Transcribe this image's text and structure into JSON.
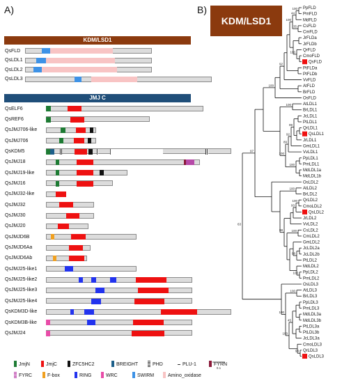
{
  "panel_a_label": "A)",
  "panel_b_label": "B)",
  "kdm_header": "KDM/LSD1",
  "jmj_header": "JMJ C",
  "kdm_box_title": "KDM/LSD1",
  "scale_label": "0.1",
  "colors": {
    "kdm_header": "#8b3a0e",
    "jmj_header": "#1f4e79",
    "JmjN": "#1e7b34",
    "JmjC": "#ee1111",
    "ZFC5HC2": "#111111",
    "BREIGHT": "#1c5f8a",
    "PHD": "#555555",
    "PLU1": "#dcdcdc",
    "FYRN": "#8b1a3a",
    "FYRC": "#b64aa8",
    "Fbox": "#f0a020",
    "RING": "#2233ee",
    "WRC": "#e84ca8",
    "SWIRM": "#3e92e6",
    "Amino_oxidase": "#f8c4c4"
  },
  "kdm_proteins": [
    {
      "name": "QsFLD",
      "len": 0.68,
      "domains": [
        {
          "t": "SWIRM",
          "s": 0.09,
          "e": 0.135
        },
        {
          "t": "Amino_oxidase",
          "s": 0.135,
          "e": 0.47
        }
      ]
    },
    {
      "name": "QsLDL1",
      "len": 0.68,
      "domains": [
        {
          "t": "SWIRM",
          "s": 0.06,
          "e": 0.11
        },
        {
          "t": "Amino_oxidase",
          "s": 0.11,
          "e": 0.48
        }
      ]
    },
    {
      "name": "QsLDL2",
      "len": 0.68,
      "domains": [
        {
          "t": "SWIRM",
          "s": 0.045,
          "e": 0.09
        },
        {
          "t": "Amino_oxidase",
          "s": 0.09,
          "e": 0.49
        }
      ]
    },
    {
      "name": "QsLDL3",
      "len": 1.0,
      "domains": [
        {
          "t": "SWIRM",
          "s": 0.265,
          "e": 0.3
        },
        {
          "t": "Amino_oxidase",
          "s": 0.355,
          "e": 0.6
        }
      ]
    }
  ],
  "jmj_proteins": [
    {
      "name": "QsELF6",
      "len": 0.85,
      "domains": [
        {
          "t": "JmjN",
          "s": 0.0,
          "e": 0.025
        },
        {
          "t": "JmjC",
          "s": 0.115,
          "e": 0.19
        }
      ]
    },
    {
      "name": "QsREF6",
      "len": 0.56,
      "domains": [
        {
          "t": "JmjN",
          "s": 0.0,
          "e": 0.025
        },
        {
          "t": "JmjC",
          "s": 0.13,
          "e": 0.205
        }
      ]
    },
    {
      "name": "QsJMJ706-like",
      "len": 0.27,
      "domains": [
        {
          "t": "JmjN",
          "s": 0.08,
          "e": 0.105
        },
        {
          "t": "JmjC",
          "s": 0.16,
          "e": 0.215
        },
        {
          "t": "ZFC5HC2",
          "s": 0.235,
          "e": 0.255
        }
      ]
    },
    {
      "name": "QsJMJ706",
      "len": 0.27,
      "domains": [
        {
          "t": "JmjN",
          "s": 0.07,
          "e": 0.095
        },
        {
          "t": "JmjC",
          "s": 0.15,
          "e": 0.205
        },
        {
          "t": "ZFC5HC2",
          "s": 0.225,
          "e": 0.245
        }
      ]
    },
    {
      "name": "QsKDM5",
      "len": 1.0,
      "domains": [
        {
          "t": "JmjN",
          "s": 0.0,
          "e": 0.02
        },
        {
          "t": "BREIGHT",
          "s": 0.02,
          "e": 0.045
        },
        {
          "t": "PHD",
          "s": 0.075,
          "e": 0.085
        },
        {
          "t": "JmjC",
          "s": 0.155,
          "e": 0.22
        },
        {
          "t": "ZFC5HC2",
          "s": 0.23,
          "e": 0.25
        },
        {
          "t": "PHD",
          "s": 0.275,
          "e": 0.28
        },
        {
          "t": "PLU1",
          "s": 0.345,
          "e": 0.63
        },
        {
          "t": "PHD",
          "s": 0.86,
          "e": 0.875
        }
      ]
    },
    {
      "name": "QsJMJ18",
      "len": 0.83,
      "domains": [
        {
          "t": "JmjN",
          "s": 0.05,
          "e": 0.07
        },
        {
          "t": "JmjC",
          "s": 0.165,
          "e": 0.255
        },
        {
          "t": "FYRN",
          "s": 0.745,
          "e": 0.755
        },
        {
          "t": "FYRC",
          "s": 0.755,
          "e": 0.8
        }
      ]
    },
    {
      "name": "QsJMJ19-like",
      "len": 0.44,
      "domains": [
        {
          "t": "JmjN",
          "s": 0.05,
          "e": 0.07
        },
        {
          "t": "JmjC",
          "s": 0.165,
          "e": 0.255
        },
        {
          "t": "ZFC5HC2",
          "s": 0.29,
          "e": 0.31
        }
      ]
    },
    {
      "name": "QsJMJ16",
      "len": 0.36,
      "domains": [
        {
          "t": "JmjN",
          "s": 0.05,
          "e": 0.07
        },
        {
          "t": "JmjC",
          "s": 0.165,
          "e": 0.255
        }
      ]
    },
    {
      "name": "QsJMJ32-like",
      "len": 0.11,
      "domains": [
        {
          "t": "JmjC",
          "s": 0.05,
          "e": 0.11
        }
      ]
    },
    {
      "name": "QsJMJ32",
      "len": 0.26,
      "domains": [
        {
          "t": "JmjC",
          "s": 0.07,
          "e": 0.145
        }
      ]
    },
    {
      "name": "QsJMJ30",
      "len": 0.26,
      "domains": [
        {
          "t": "JmjC",
          "s": 0.11,
          "e": 0.18
        }
      ]
    },
    {
      "name": "QsJMJ20",
      "len": 0.23,
      "domains": [
        {
          "t": "JmjC",
          "s": 0.065,
          "e": 0.125
        }
      ]
    },
    {
      "name": "QsJMJD6B",
      "len": 0.49,
      "domains": [
        {
          "t": "Fbox",
          "s": 0.025,
          "e": 0.045
        },
        {
          "t": "JmjC",
          "s": 0.135,
          "e": 0.215
        }
      ]
    },
    {
      "name": "QsJMJD6Aa",
      "len": 0.24,
      "domains": [
        {
          "t": "JmjC",
          "s": 0.125,
          "e": 0.2
        }
      ]
    },
    {
      "name": "QsJMJD6Ab",
      "len": 0.22,
      "domains": [
        {
          "t": "Fbox",
          "s": 0.035,
          "e": 0.055
        },
        {
          "t": "JmjC",
          "s": 0.125,
          "e": 0.205
        }
      ]
    },
    {
      "name": "QsJMJ25-like1",
      "len": 0.49,
      "domains": [
        {
          "t": "RING",
          "s": 0.1,
          "e": 0.145
        }
      ]
    },
    {
      "name": "QsJMJ25-like2",
      "len": 0.79,
      "domains": [
        {
          "t": "RING",
          "s": 0.175,
          "e": 0.2
        },
        {
          "t": "RING",
          "s": 0.245,
          "e": 0.27
        },
        {
          "t": "RING",
          "s": 0.345,
          "e": 0.38
        },
        {
          "t": "JmjC",
          "s": 0.485,
          "e": 0.65
        }
      ]
    },
    {
      "name": "QsJMJ25-like3",
      "len": 0.79,
      "domains": [
        {
          "t": "RING",
          "s": 0.265,
          "e": 0.315
        },
        {
          "t": "JmjC",
          "s": 0.495,
          "e": 0.66
        }
      ]
    },
    {
      "name": "QsJMJ25-like4",
      "len": 0.79,
      "domains": [
        {
          "t": "RING",
          "s": 0.245,
          "e": 0.295
        },
        {
          "t": "JmjC",
          "s": 0.475,
          "e": 0.64
        }
      ]
    },
    {
      "name": "QsKDM3D-like",
      "len": 1.0,
      "domains": [
        {
          "t": "RING",
          "s": 0.13,
          "e": 0.15
        },
        {
          "t": "RING",
          "s": 0.205,
          "e": 0.26
        },
        {
          "t": "JmjC",
          "s": 0.62,
          "e": 0.815
        }
      ]
    },
    {
      "name": "QsKDM3B-like",
      "len": 0.79,
      "domains": [
        {
          "t": "WRC",
          "s": 0.0,
          "e": 0.02
        },
        {
          "t": "RING",
          "s": 0.22,
          "e": 0.265
        },
        {
          "t": "JmjC",
          "s": 0.47,
          "e": 0.635
        }
      ]
    },
    {
      "name": "QsJMJ24",
      "len": 0.79,
      "domains": [
        {
          "t": "WRC",
          "s": 0.0,
          "e": 0.02
        },
        {
          "t": "JmjC",
          "s": 0.46,
          "e": 0.64
        }
      ]
    }
  ],
  "legend": [
    {
      "t": "JmjN",
      "label": "JmjN"
    },
    {
      "t": "JmjC",
      "label": "JmjC"
    },
    {
      "t": "ZFC5HC2",
      "label": "ZFC5HC2"
    },
    {
      "t": "BREIGHT",
      "label": "BREIGHT"
    },
    {
      "t": "PHD",
      "label": "PHD"
    },
    {
      "t": "PLU1",
      "label": "PLU-1"
    },
    {
      "t": "FYRN",
      "label": "FYRN"
    },
    {
      "t": "FYRC",
      "label": "FYRC"
    },
    {
      "t": "Fbox",
      "label": "F-box"
    },
    {
      "t": "RING",
      "label": "RING"
    },
    {
      "t": "WRC",
      "label": "WRC"
    },
    {
      "t": "SWIRM",
      "label": "SWIRM"
    },
    {
      "t": "Amino_oxidase",
      "label": "Amino_oxidase"
    }
  ],
  "tree_leaves": [
    {
      "n": "PpFLD",
      "mark": false
    },
    {
      "n": "PmFLD",
      "mark": false
    },
    {
      "n": "MdFLD",
      "mark": false
    },
    {
      "n": "CsFLD",
      "mark": false
    },
    {
      "n": "CmFLD",
      "mark": false
    },
    {
      "n": "JrFLDa",
      "mark": false
    },
    {
      "n": "JrFLDb",
      "mark": false
    },
    {
      "n": "QrFLD",
      "mark": false
    },
    {
      "n": "CmoFLD",
      "mark": false
    },
    {
      "n": "QsFLD",
      "mark": true
    },
    {
      "n": "PtFLDa",
      "mark": false
    },
    {
      "n": "PtFLDb",
      "mark": false
    },
    {
      "n": "VvFLD",
      "mark": false
    },
    {
      "n": "AtFLD",
      "mark": false
    },
    {
      "n": "BrFLD",
      "mark": false
    },
    {
      "n": "OsFLD",
      "mark": false
    },
    {
      "n": "AtLDL1",
      "mark": false
    },
    {
      "n": "BrLDL1",
      "mark": false
    },
    {
      "n": "JcLDL1",
      "mark": false
    },
    {
      "n": "PtLDL1",
      "mark": false
    },
    {
      "n": "QrLDL1",
      "mark": false
    },
    {
      "n": "QsLDL1",
      "mark": true
    },
    {
      "n": "JrLDL1",
      "mark": false
    },
    {
      "n": "GmLDL1",
      "mark": false
    },
    {
      "n": "VvLDL1",
      "mark": false
    },
    {
      "n": "PpLDL1",
      "mark": false
    },
    {
      "n": "PmLDL1",
      "mark": false
    },
    {
      "n": "MdLDL1a",
      "mark": false
    },
    {
      "n": "MdLDL1b",
      "mark": false
    },
    {
      "n": "OsLDL2",
      "mark": false
    },
    {
      "n": "AtLDL2",
      "mark": false
    },
    {
      "n": "BrLDL2",
      "mark": false
    },
    {
      "n": "QrLDL2",
      "mark": false
    },
    {
      "n": "CmoLDL2",
      "mark": false
    },
    {
      "n": "QsLDL2",
      "mark": true
    },
    {
      "n": "JrLDL2",
      "mark": false
    },
    {
      "n": "VvLDL2",
      "mark": false
    },
    {
      "n": "CsLDL2",
      "mark": false
    },
    {
      "n": "CmLDL2",
      "mark": false
    },
    {
      "n": "GmLDL2",
      "mark": false
    },
    {
      "n": "JcLDL2a",
      "mark": false
    },
    {
      "n": "JcLDL2b",
      "mark": false
    },
    {
      "n": "PtLDL2",
      "mark": false
    },
    {
      "n": "MdLDL2",
      "mark": false
    },
    {
      "n": "PpLDL2",
      "mark": false
    },
    {
      "n": "PmLDL2",
      "mark": false
    },
    {
      "n": "OsLDL3",
      "mark": false
    },
    {
      "n": "AtLDL3",
      "mark": false
    },
    {
      "n": "BrLDL3",
      "mark": false
    },
    {
      "n": "PpLDL3",
      "mark": false
    },
    {
      "n": "PmLDL3",
      "mark": false
    },
    {
      "n": "MdLDL3a",
      "mark": false
    },
    {
      "n": "MdLDL3b",
      "mark": false
    },
    {
      "n": "PtLDL3a",
      "mark": false
    },
    {
      "n": "PtLDL3b",
      "mark": false
    },
    {
      "n": "JcLDL3a",
      "mark": false
    },
    {
      "n": "CmoLDL3",
      "mark": false
    },
    {
      "n": "QrLDL3",
      "mark": false
    },
    {
      "n": "QsLDL3",
      "mark": true
    }
  ],
  "bootstrap_values": [
    "100",
    "44",
    "35",
    "100",
    "100",
    "92",
    "100",
    "63",
    "100",
    "99",
    "92",
    "89",
    "100",
    "100",
    "100",
    "98",
    "97",
    "100",
    "93",
    "100",
    "98",
    "100",
    "100",
    "45",
    "100",
    "100",
    "93"
  ]
}
